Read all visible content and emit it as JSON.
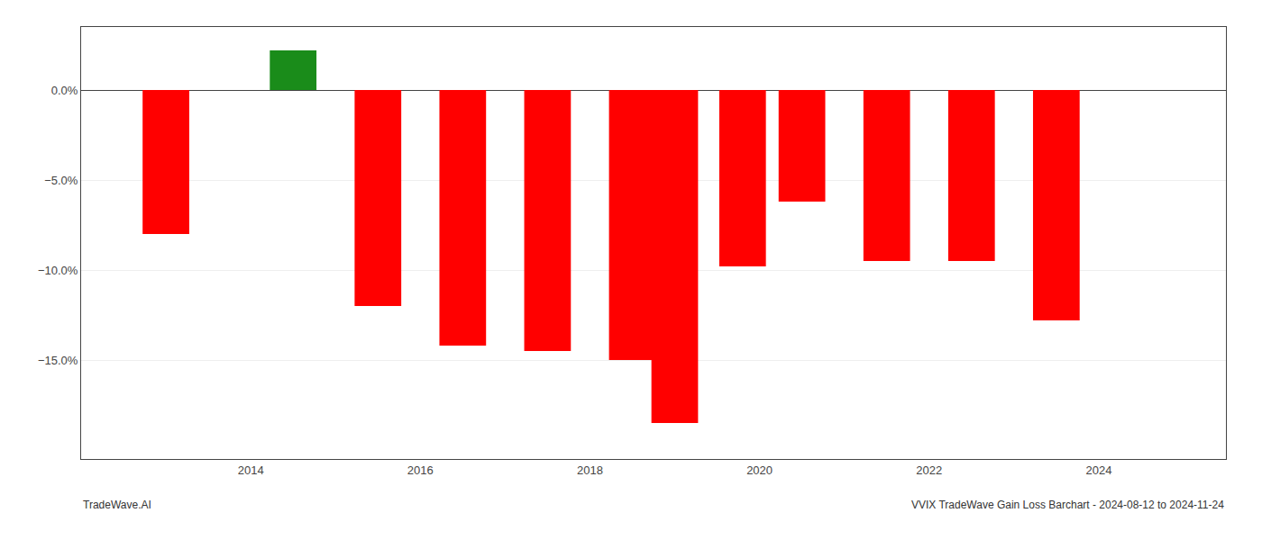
{
  "chart_data": {
    "type": "bar",
    "x": [
      2013.0,
      2014.5,
      2015.5,
      2016.5,
      2017.5,
      2018.5,
      2019.0,
      2019.8,
      2020.5,
      2021.5,
      2022.5,
      2023.5
    ],
    "values": [
      -8.0,
      2.2,
      -12.0,
      -14.2,
      -14.5,
      -15.0,
      -18.5,
      -9.8,
      -6.2,
      -9.5,
      -9.5,
      -12.8
    ],
    "colors": [
      "#ff0000",
      "#1a8c1a",
      "#ff0000",
      "#ff0000",
      "#ff0000",
      "#ff0000",
      "#ff0000",
      "#ff0000",
      "#ff0000",
      "#ff0000",
      "#ff0000",
      "#ff0000"
    ],
    "xlim": [
      2012.0,
      2025.5
    ],
    "xticks": [
      2014,
      2016,
      2018,
      2020,
      2022,
      2024
    ],
    "ylim": [
      -20.5,
      3.5
    ],
    "yticks": [
      {
        "value": 0.0,
        "label": "0.0%"
      },
      {
        "value": -5.0,
        "label": "−5.0%"
      },
      {
        "value": -10.0,
        "label": "−10.0%"
      },
      {
        "value": -15.0,
        "label": "−15.0%"
      }
    ],
    "grid": true,
    "annotations": [
      "TradeWave.AI",
      "VVIX TradeWave Gain Loss Barchart - 2024-08-12 to 2024-11-24"
    ]
  }
}
